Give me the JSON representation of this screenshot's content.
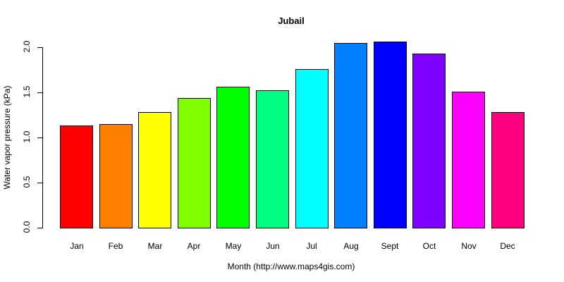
{
  "chart_data": {
    "type": "bar",
    "title": "Jubail",
    "xlabel": "Month (http://www.maps4gis.com)",
    "ylabel": "Water vapor pressure (kPa)",
    "categories": [
      "Jan",
      "Feb",
      "Mar",
      "Apr",
      "May",
      "Jun",
      "Jul",
      "Aug",
      "Sept",
      "Oct",
      "Nov",
      "Dec"
    ],
    "values": [
      1.13,
      1.15,
      1.28,
      1.44,
      1.56,
      1.52,
      1.76,
      2.05,
      2.06,
      1.93,
      1.51,
      1.28
    ],
    "colors": [
      "#FF0000",
      "#FF8000",
      "#FFFF00",
      "#80FF00",
      "#00FF00",
      "#00FF80",
      "#00FFFF",
      "#0080FF",
      "#0000FF",
      "#8000FF",
      "#FF00FF",
      "#FF0080"
    ],
    "ylim": [
      0,
      2.0
    ],
    "yticks": [
      "0.0",
      "0.5",
      "1.0",
      "1.5",
      "2.0"
    ],
    "grid": false,
    "legend": null
  }
}
